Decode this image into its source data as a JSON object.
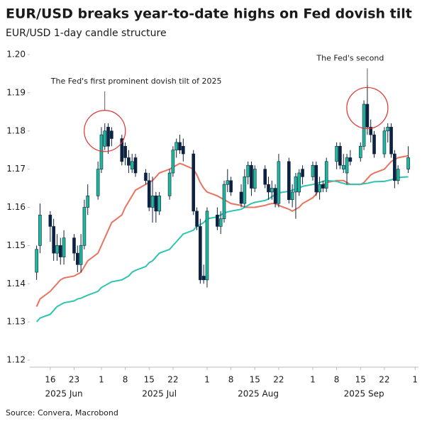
{
  "chart_data": {
    "type": "candlestick",
    "title": "EUR/USD breaks year-to-date highs on Fed dovish tilt",
    "subtitle": "EUR/USD 1-day candle structure",
    "source": "Source: Convera, Macrobond",
    "up_color": "#1fb89a",
    "down_color": "#0d2240",
    "x": [
      "2025-06-12",
      "2025-06-13",
      "2025-06-16",
      "2025-06-17",
      "2025-06-18",
      "2025-06-19",
      "2025-06-20",
      "2025-06-23",
      "2025-06-24",
      "2025-06-25",
      "2025-06-26",
      "2025-06-27",
      "2025-06-30",
      "2025-07-01",
      "2025-07-02",
      "2025-07-03",
      "2025-07-04",
      "2025-07-07",
      "2025-07-08",
      "2025-07-09",
      "2025-07-10",
      "2025-07-11",
      "2025-07-14",
      "2025-07-15",
      "2025-07-16",
      "2025-07-17",
      "2025-07-18",
      "2025-07-21",
      "2025-07-22",
      "2025-07-23",
      "2025-07-24",
      "2025-07-25",
      "2025-07-28",
      "2025-07-29",
      "2025-07-30",
      "2025-07-31",
      "2025-08-01",
      "2025-08-04",
      "2025-08-05",
      "2025-08-06",
      "2025-08-07",
      "2025-08-08",
      "2025-08-11",
      "2025-08-12",
      "2025-08-13",
      "2025-08-14",
      "2025-08-15",
      "2025-08-18",
      "2025-08-19",
      "2025-08-20",
      "2025-08-21",
      "2025-08-22",
      "2025-08-25",
      "2025-08-26",
      "2025-08-27",
      "2025-08-28",
      "2025-08-29",
      "2025-09-01",
      "2025-09-02",
      "2025-09-03",
      "2025-09-04",
      "2025-09-05",
      "2025-09-08",
      "2025-09-09",
      "2025-09-10",
      "2025-09-11",
      "2025-09-12",
      "2025-09-15",
      "2025-09-16",
      "2025-09-17",
      "2025-09-18",
      "2025-09-19",
      "2025-09-22",
      "2025-09-23",
      "2025-09-24",
      "2025-09-25",
      "2025-09-26",
      "2025-09-29"
    ],
    "open": [
      1.143,
      1.15,
      1.158,
      1.155,
      1.148,
      1.15,
      1.147,
      1.152,
      1.148,
      1.145,
      1.15,
      1.16,
      1.163,
      1.17,
      1.176,
      1.181,
      1.18,
      1.178,
      1.176,
      1.173,
      1.17,
      1.173,
      1.169,
      1.167,
      1.16,
      1.163,
      1.159,
      1.163,
      1.169,
      1.175,
      1.177,
      1.176,
      1.174,
      1.159,
      1.155,
      1.142,
      1.141,
      1.158,
      1.155,
      1.157,
      1.166,
      1.167,
      1.164,
      1.161,
      1.168,
      1.171,
      1.165,
      1.17,
      1.166,
      1.164,
      1.165,
      1.161,
      1.172,
      1.162,
      1.164,
      1.164,
      1.17,
      1.168,
      1.171,
      1.164,
      1.166,
      1.165,
      1.172,
      1.176,
      1.17,
      1.169,
      1.173,
      1.173,
      1.176,
      1.187,
      1.181,
      1.179,
      1.174,
      1.18,
      1.181,
      1.174,
      1.167,
      1.17
    ],
    "high": [
      1.15,
      1.161,
      1.159,
      1.157,
      1.153,
      1.152,
      1.154,
      1.153,
      1.15,
      1.153,
      1.162,
      1.166,
      1.172,
      1.181,
      1.182,
      1.182,
      1.181,
      1.179,
      1.177,
      1.175,
      1.174,
      1.174,
      1.17,
      1.169,
      1.168,
      1.164,
      1.164,
      1.17,
      1.176,
      1.178,
      1.179,
      1.178,
      1.175,
      1.16,
      1.157,
      1.145,
      1.16,
      1.16,
      1.159,
      1.167,
      1.17,
      1.168,
      1.166,
      1.17,
      1.172,
      1.172,
      1.171,
      1.171,
      1.168,
      1.167,
      1.166,
      1.174,
      1.173,
      1.166,
      1.169,
      1.17,
      1.171,
      1.172,
      1.172,
      1.168,
      1.167,
      1.173,
      1.177,
      1.177,
      1.174,
      1.174,
      1.175,
      1.177,
      1.188,
      1.192,
      1.183,
      1.18,
      1.181,
      1.182,
      1.182,
      1.175,
      1.171,
      1.176
    ],
    "low": [
      1.141,
      1.148,
      1.151,
      1.146,
      1.146,
      1.145,
      1.145,
      1.146,
      1.143,
      1.143,
      1.149,
      1.158,
      1.162,
      1.169,
      1.175,
      1.174,
      1.176,
      1.171,
      1.171,
      1.169,
      1.169,
      1.168,
      1.166,
      1.159,
      1.156,
      1.156,
      1.158,
      1.162,
      1.168,
      1.173,
      1.174,
      1.172,
      1.158,
      1.154,
      1.14,
      1.14,
      1.139,
      1.154,
      1.153,
      1.156,
      1.164,
      1.163,
      1.16,
      1.16,
      1.166,
      1.163,
      1.164,
      1.165,
      1.162,
      1.162,
      1.16,
      1.16,
      1.161,
      1.16,
      1.157,
      1.163,
      1.166,
      1.167,
      1.163,
      1.162,
      1.164,
      1.164,
      1.17,
      1.17,
      1.169,
      1.166,
      1.171,
      1.172,
      1.175,
      1.179,
      1.177,
      1.173,
      1.173,
      1.177,
      1.173,
      1.165,
      1.166,
      1.169
    ],
    "close": [
      1.149,
      1.158,
      1.155,
      1.148,
      1.15,
      1.147,
      1.152,
      1.148,
      1.145,
      1.15,
      1.16,
      1.163,
      1.17,
      1.179,
      1.18,
      1.176,
      1.178,
      1.172,
      1.173,
      1.171,
      1.172,
      1.169,
      1.167,
      1.16,
      1.163,
      1.159,
      1.163,
      1.169,
      1.175,
      1.177,
      1.175,
      1.174,
      1.159,
      1.155,
      1.141,
      1.141,
      1.159,
      1.155,
      1.157,
      1.166,
      1.167,
      1.164,
      1.161,
      1.168,
      1.171,
      1.165,
      1.17,
      1.166,
      1.164,
      1.165,
      1.161,
      1.172,
      1.162,
      1.164,
      1.168,
      1.169,
      1.168,
      1.171,
      1.164,
      1.166,
      1.165,
      1.172,
      1.176,
      1.171,
      1.171,
      1.173,
      1.172,
      1.176,
      1.187,
      1.181,
      1.179,
      1.174,
      1.18,
      1.181,
      1.174,
      1.167,
      1.17,
      1.173
    ],
    "lines": [
      {
        "color": "#e8735f",
        "values": [
          1.134,
          1.136,
          1.138,
          1.139,
          1.14,
          1.141,
          1.1415,
          1.142,
          1.1425,
          1.143,
          1.1445,
          1.146,
          1.148,
          1.15,
          1.152,
          1.154,
          1.156,
          1.158,
          1.16,
          1.1615,
          1.163,
          1.1645,
          1.166,
          1.1665,
          1.167,
          1.168,
          1.169,
          1.17,
          1.1705,
          1.171,
          1.1715,
          1.1712,
          1.17,
          1.1685,
          1.1665,
          1.165,
          1.164,
          1.163,
          1.1625,
          1.162,
          1.1615,
          1.161,
          1.1605,
          1.16,
          1.16,
          1.16,
          1.16,
          1.1605,
          1.1608,
          1.161,
          1.161,
          1.1605,
          1.1595,
          1.159,
          1.1595,
          1.16,
          1.161,
          1.1625,
          1.1635,
          1.165,
          1.1658,
          1.1665,
          1.167,
          1.167,
          1.167,
          1.1665,
          1.166,
          1.166,
          1.1665,
          1.1675,
          1.1685,
          1.169,
          1.17,
          1.171,
          1.172,
          1.1725,
          1.173,
          1.1735
        ]
      },
      {
        "color": "#2ec4b0",
        "values": [
          1.13,
          1.131,
          1.132,
          1.133,
          1.134,
          1.1345,
          1.135,
          1.1355,
          1.136,
          1.1362,
          1.1366,
          1.137,
          1.138,
          1.139,
          1.1395,
          1.14,
          1.1405,
          1.141,
          1.1415,
          1.142,
          1.143,
          1.1435,
          1.1445,
          1.1455,
          1.146,
          1.147,
          1.148,
          1.149,
          1.15,
          1.151,
          1.152,
          1.153,
          1.154,
          1.155,
          1.1555,
          1.156,
          1.157,
          1.1575,
          1.158,
          1.1585,
          1.1588,
          1.159,
          1.1595,
          1.16,
          1.1605,
          1.161,
          1.1613,
          1.1618,
          1.1622,
          1.1628,
          1.1633,
          1.1638,
          1.1642,
          1.1645,
          1.1648,
          1.165,
          1.1655,
          1.166,
          1.1662,
          1.1665,
          1.1668,
          1.167,
          1.1668,
          1.1665,
          1.1663,
          1.166,
          1.166,
          1.166,
          1.1662,
          1.1663,
          1.1665,
          1.1667,
          1.1668,
          1.167,
          1.1672,
          1.1675,
          1.1678,
          1.168
        ]
      }
    ],
    "annotations": [
      {
        "text": "The Fed's first prominent dovish tilt of 2025",
        "x": "2025-07-02",
        "y": 1.18
      },
      {
        "text": "The Fed's second",
        "x": "2025-09-17",
        "y": 1.186
      }
    ],
    "ylim": [
      1.12,
      1.2
    ],
    "yticks": [
      1.12,
      1.13,
      1.14,
      1.15,
      1.16,
      1.17,
      1.18,
      1.19,
      {
        "value": 1.2,
        "label": "1.20"
      }
    ],
    "xlim": [
      "2025-06-10",
      "2025-10-02"
    ],
    "xticks": [
      {
        "value": "2025-06-16",
        "label": "16"
      },
      {
        "value": "2025-06-23",
        "label": "23"
      },
      {
        "value": "2025-07-01",
        "label": "1"
      },
      {
        "value": "2025-07-08",
        "label": "8"
      },
      {
        "value": "2025-07-15",
        "label": "15"
      },
      {
        "value": "2025-07-22",
        "label": "22"
      },
      {
        "value": "2025-08-01",
        "label": "1"
      },
      {
        "value": "2025-08-08",
        "label": "8"
      },
      {
        "value": "2025-08-15",
        "label": "15"
      },
      {
        "value": "2025-08-22",
        "label": "22"
      },
      {
        "value": "2025-09-01",
        "label": "1"
      },
      {
        "value": "2025-09-08",
        "label": "8"
      },
      {
        "value": "2025-09-15",
        "label": "15"
      },
      {
        "value": "2025-09-22",
        "label": "22"
      },
      {
        "value": "2025-10-01",
        "label": "1"
      }
    ],
    "month_labels": [
      {
        "value": "2025-06-20",
        "label": "2025 Jun"
      },
      {
        "value": "2025-07-18",
        "label": "2025 Jul"
      },
      {
        "value": "2025-08-16",
        "label": "2025 Aug"
      },
      {
        "value": "2025-09-16",
        "label": "2025 Sep"
      }
    ]
  }
}
